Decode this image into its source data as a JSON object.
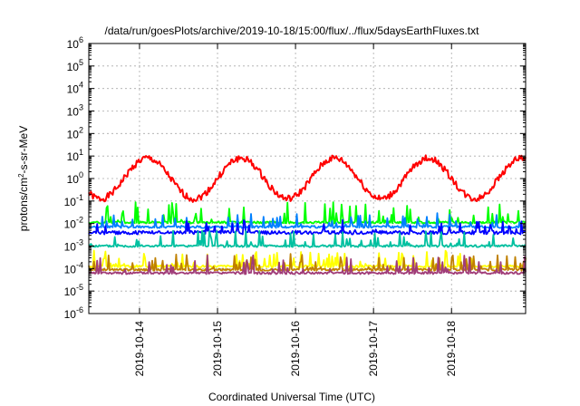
{
  "chart_data": {
    "type": "line",
    "title": "/data/run/goesPlots/archive/2019-10-18/15:00/flux/../flux/5daysEarthFluxes.txt",
    "xlabel": "Coordinated Universal Time (UTC)",
    "ylabel": {
      "prefix": "protons/cm",
      "sup": "2",
      "suffix": "-s-sr-MeV"
    },
    "yscale": "log",
    "ylim_exp": [
      -6,
      6
    ],
    "y_ticks": [
      {
        "b": "10",
        "e": "6"
      },
      {
        "b": "10",
        "e": "5"
      },
      {
        "b": "10",
        "e": "4"
      },
      {
        "b": "10",
        "e": "3"
      },
      {
        "b": "10",
        "e": "2"
      },
      {
        "b": "10",
        "e": "1"
      },
      {
        "b": "10",
        "e": "0"
      },
      {
        "b": "10",
        "e": "-1"
      },
      {
        "b": "10",
        "e": "-2"
      },
      {
        "b": "10",
        "e": "-3"
      },
      {
        "b": "10",
        "e": "-4"
      },
      {
        "b": "10",
        "e": "-5"
      },
      {
        "b": "10",
        "e": "-6"
      }
    ],
    "xlim_days": [
      0,
      5.6
    ],
    "x_ticks": [
      {
        "label": "2019-10-14",
        "day": 0.65
      },
      {
        "label": "2019-10-15",
        "day": 1.65
      },
      {
        "label": "2019-10-16",
        "day": 2.65
      },
      {
        "label": "2019-10-17",
        "day": 3.65
      },
      {
        "label": "2019-10-18",
        "day": 4.65
      }
    ],
    "grid": true,
    "series": [
      {
        "color": "#ff0000",
        "level": 0.0,
        "amp": 0.9,
        "period": 1.2,
        "phase": 0.45,
        "noise": 0.15,
        "spikes": 0.0,
        "seed": 1
      },
      {
        "color": "#00ff00",
        "level": -1.95,
        "amp": 0.0,
        "period": 1.0,
        "phase": 0,
        "noise": 0.05,
        "spikes": 0.9,
        "seed": 2
      },
      {
        "color": "#0080ff",
        "level": -2.15,
        "amp": 0.0,
        "period": 1.0,
        "phase": 0,
        "noise": 0.05,
        "spikes": 0.6,
        "seed": 3
      },
      {
        "color": "#0000ff",
        "level": -2.4,
        "amp": 0.0,
        "period": 1.0,
        "phase": 0,
        "noise": 0.08,
        "spikes": 0.5,
        "seed": 4
      },
      {
        "color": "#00c0a0",
        "level": -3.0,
        "amp": 0.0,
        "period": 1.0,
        "phase": 0,
        "noise": 0.05,
        "spikes": 0.7,
        "seed": 5
      },
      {
        "color": "#ffff00",
        "level": -3.9,
        "amp": 0.0,
        "period": 1.0,
        "phase": 0,
        "noise": 0.05,
        "spikes": 0.7,
        "seed": 6
      },
      {
        "color": "#c08000",
        "level": -4.05,
        "amp": 0.0,
        "period": 1.0,
        "phase": 0,
        "noise": 0.05,
        "spikes": 0.7,
        "seed": 7
      },
      {
        "color": "#a03c78",
        "level": -4.2,
        "amp": 0.0,
        "period": 1.0,
        "phase": 0,
        "noise": 0.05,
        "spikes": 0.8,
        "seed": 8
      }
    ]
  }
}
